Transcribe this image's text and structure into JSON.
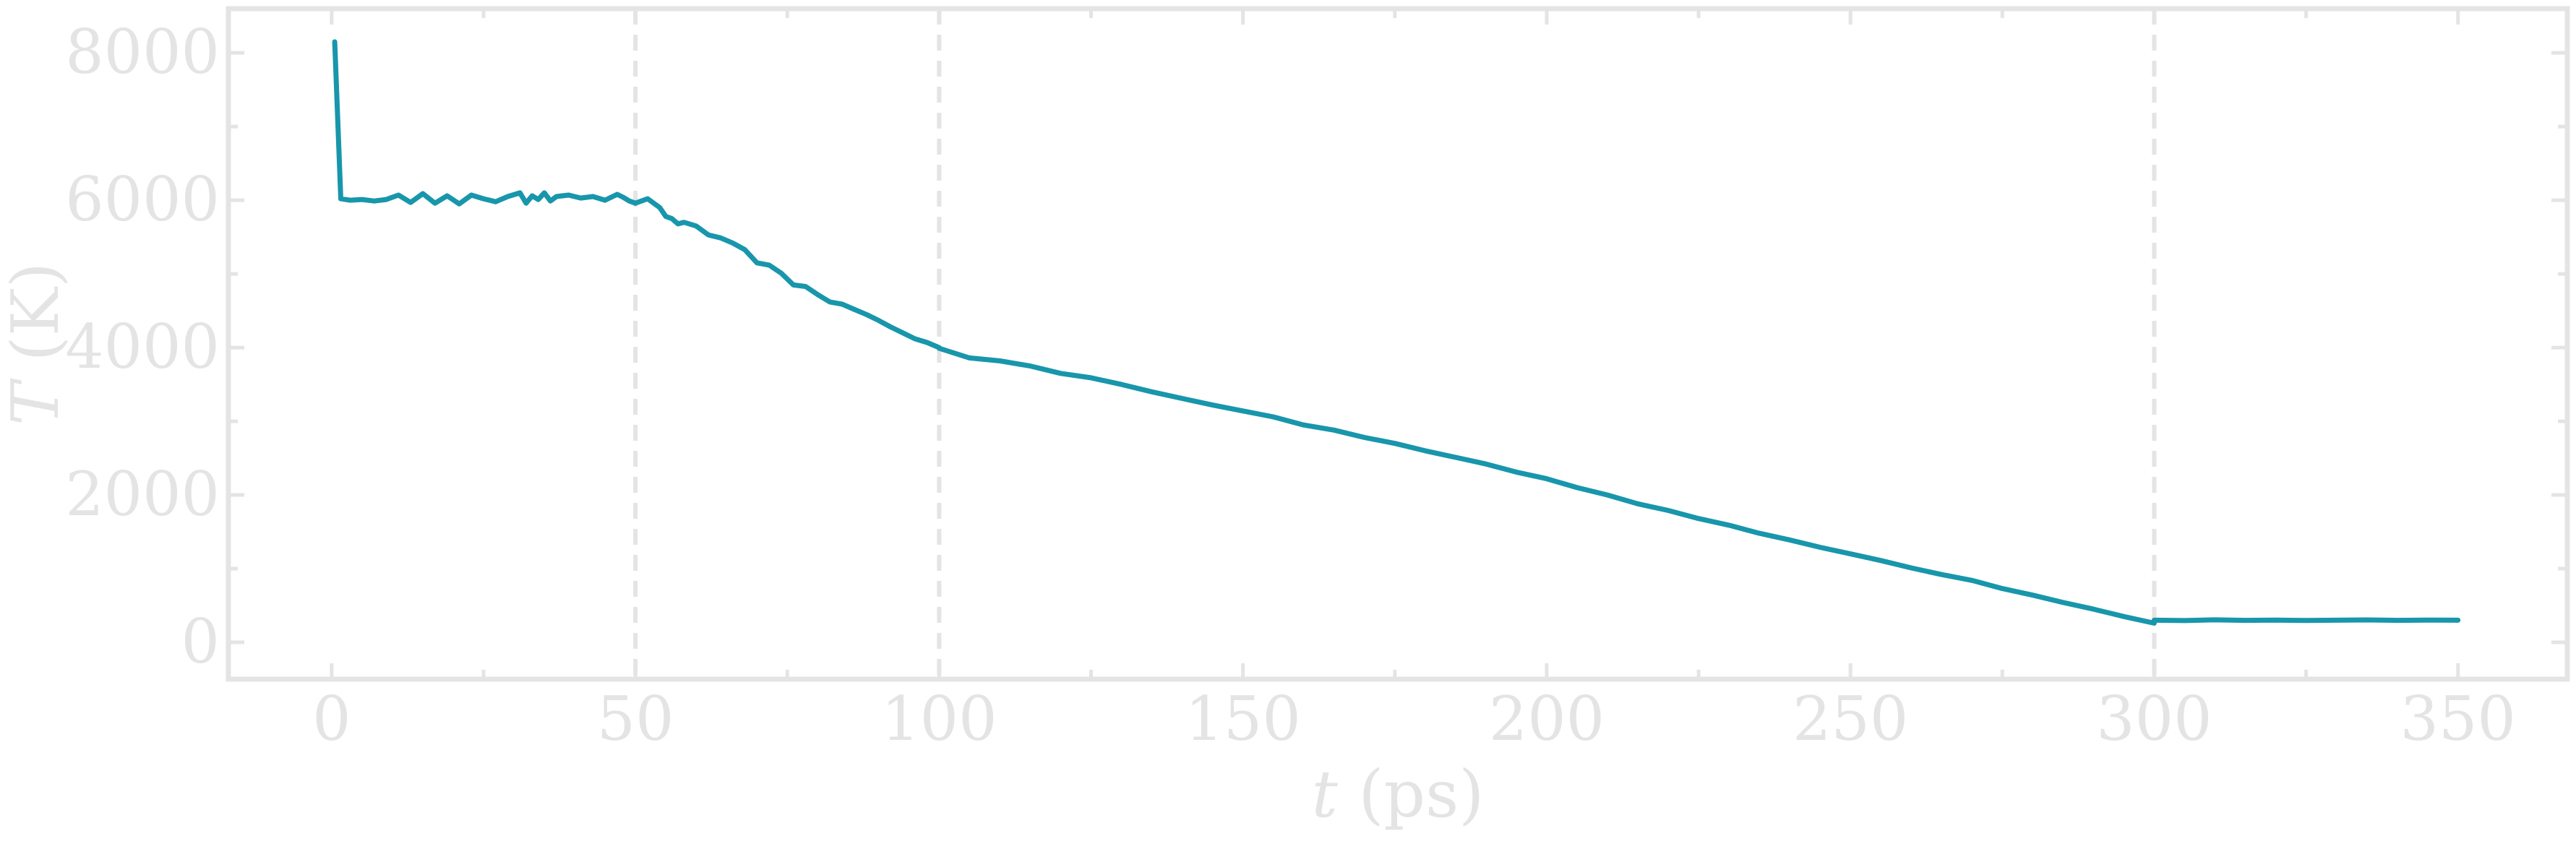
{
  "chart_data": {
    "type": "line",
    "xlabel": {
      "var": "t",
      "unit": " (ps)"
    },
    "ylabel": {
      "var": "T",
      "unit": " (K)"
    },
    "xlim": [
      -17,
      368
    ],
    "ylim": [
      -500,
      8600
    ],
    "x_ticks": [
      0,
      50,
      100,
      150,
      200,
      250,
      300,
      350
    ],
    "x_tick_labels": [
      "0",
      "50",
      "100",
      "150",
      "200",
      "250",
      "300",
      "350"
    ],
    "x_minor_ticks": [
      25,
      75,
      125,
      175,
      225,
      275,
      325
    ],
    "y_ticks": [
      0,
      2000,
      4000,
      6000,
      8000
    ],
    "y_tick_labels": [
      "0",
      "2000",
      "4000",
      "6000",
      "8000"
    ],
    "y_minor_ticks": [
      1000,
      3000,
      5000,
      7000
    ],
    "grid": false,
    "legend": "none",
    "reference_lines_x": [
      50,
      100,
      300
    ],
    "color": "#1896ab",
    "series": [
      {
        "x": [
          0.5,
          1.5,
          3,
          5,
          7,
          9,
          11,
          13,
          15,
          17,
          19,
          21,
          23,
          25,
          27,
          29,
          31,
          32,
          33,
          34,
          35,
          36,
          37,
          39,
          41,
          43,
          45,
          47,
          48,
          49,
          50
        ],
        "y": [
          8150,
          6020,
          6000,
          6010,
          5990,
          6010,
          6070,
          5970,
          6090,
          5960,
          6060,
          5950,
          6070,
          6020,
          5980,
          6050,
          6100,
          5960,
          6060,
          6010,
          6100,
          5990,
          6050,
          6070,
          6030,
          6050,
          6000,
          6080,
          6040,
          5990,
          5960
        ]
      },
      {
        "x": [
          50,
          52,
          54,
          55,
          56,
          57,
          58,
          60,
          62,
          64,
          66,
          68,
          70,
          72,
          74,
          76,
          78,
          80,
          82,
          84,
          86,
          88,
          90,
          92,
          94,
          96,
          98,
          100
        ],
        "y": [
          5960,
          6020,
          5900,
          5780,
          5750,
          5680,
          5700,
          5650,
          5530,
          5490,
          5420,
          5330,
          5150,
          5120,
          5010,
          4850,
          4830,
          4720,
          4620,
          4590,
          4520,
          4450,
          4370,
          4280,
          4200,
          4120,
          4070,
          4000
        ]
      },
      {
        "x": [
          100,
          105,
          110,
          115,
          120,
          125,
          130,
          135,
          140,
          145,
          150,
          155,
          160,
          165,
          170,
          175,
          180,
          185,
          190,
          195,
          200,
          205,
          210,
          215,
          220,
          225,
          230,
          235,
          240,
          245,
          250,
          255,
          260,
          265,
          270,
          275,
          280,
          285,
          290,
          295,
          300
        ],
        "y": [
          3990,
          3860,
          3820,
          3750,
          3650,
          3590,
          3500,
          3400,
          3310,
          3220,
          3140,
          3060,
          2950,
          2880,
          2780,
          2700,
          2600,
          2510,
          2420,
          2310,
          2220,
          2100,
          2000,
          1880,
          1790,
          1680,
          1590,
          1480,
          1390,
          1290,
          1200,
          1110,
          1010,
          920,
          840,
          730,
          640,
          540,
          450,
          350,
          260
        ]
      },
      {
        "x": [
          300,
          305,
          310,
          315,
          320,
          325,
          330,
          335,
          340,
          345,
          350
        ],
        "y": [
          300,
          295,
          305,
          298,
          302,
          296,
          300,
          304,
          298,
          301,
          300
        ]
      }
    ]
  }
}
